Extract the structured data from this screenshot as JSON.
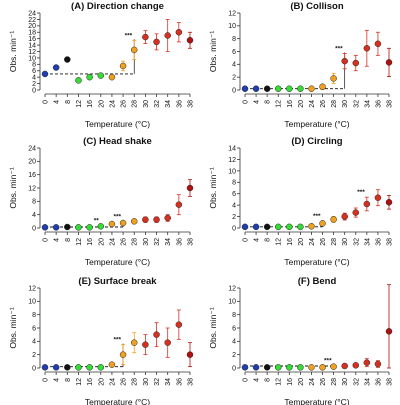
{
  "colors": {
    "0": "#1f3fb0",
    "4": "#1f3fb0",
    "8": "#111111",
    "12": "#33dd33",
    "16": "#33dd33",
    "20": "#33dd33",
    "24": "#f0a020",
    "26": "#f0a020",
    "28": "#f0a020",
    "30": "#d83020",
    "32": "#d83020",
    "34": "#d83020",
    "36": "#d83020",
    "38": "#b01010"
  },
  "chart_data": [
    {
      "type": "scatter",
      "title": "(A) Direction change",
      "xlabel": "Temperature (°C)",
      "ylabel": "Obs. min⁻¹",
      "ylim": [
        0,
        24
      ],
      "yticks": [
        0,
        2,
        4,
        6,
        8,
        10,
        12,
        14,
        16,
        18,
        20,
        22,
        24
      ],
      "xticks": [
        0,
        4,
        8,
        12,
        16,
        20,
        24,
        26,
        28,
        30,
        32,
        34,
        36,
        38
      ],
      "x": [
        0,
        4,
        8,
        12,
        16,
        20,
        24,
        26,
        28,
        30,
        32,
        34,
        36,
        38
      ],
      "y": [
        5,
        7,
        9.5,
        3,
        4,
        4.5,
        4,
        7.5,
        12.5,
        16.5,
        15,
        17,
        18,
        15.5
      ],
      "err": [
        0.4,
        0.6,
        0.6,
        0.3,
        0.4,
        0.4,
        0.5,
        1.5,
        3,
        2,
        2.5,
        5,
        3,
        2.5
      ],
      "baseline": 5,
      "sig_label": "***",
      "sig_x": 28
    },
    {
      "type": "scatter",
      "title": "(B) Collison",
      "xlabel": "Temperature (°C)",
      "ylabel": "Obs. min⁻¹",
      "ylim": [
        0,
        12
      ],
      "yticks": [
        0,
        2,
        4,
        6,
        8,
        10,
        12
      ],
      "xticks": [
        0,
        4,
        8,
        12,
        16,
        20,
        24,
        26,
        28,
        30,
        32,
        34,
        36,
        38
      ],
      "x": [
        0,
        4,
        8,
        12,
        16,
        20,
        24,
        26,
        28,
        30,
        32,
        34,
        36,
        38
      ],
      "y": [
        0.2,
        0.2,
        0.2,
        0.2,
        0.2,
        0.2,
        0.2,
        0.5,
        1.8,
        4.5,
        4.2,
        6.5,
        7.2,
        4.3
      ],
      "err": [
        0.1,
        0.1,
        0.1,
        0.1,
        0.1,
        0.1,
        0.2,
        0.4,
        0.8,
        1.2,
        1.2,
        2.8,
        1.8,
        2.2
      ],
      "baseline": 0.2,
      "sig_label": "***",
      "sig_x": 30
    },
    {
      "type": "scatter",
      "title": "(C) Head shake",
      "xlabel": "Temperature (°C)",
      "ylabel": "Obs. min⁻¹",
      "ylim": [
        0,
        24
      ],
      "yticks": [
        0,
        4,
        8,
        12,
        16,
        20,
        24
      ],
      "xticks": [
        0,
        4,
        8,
        12,
        16,
        20,
        24,
        26,
        28,
        30,
        32,
        34,
        36,
        38
      ],
      "x": [
        0,
        4,
        8,
        12,
        16,
        20,
        24,
        26,
        28,
        30,
        32,
        34,
        36,
        38
      ],
      "y": [
        0.2,
        0.2,
        0.3,
        0.2,
        0.2,
        0.5,
        1.2,
        1.5,
        2,
        2.5,
        2.5,
        3,
        7,
        12
      ],
      "err": [
        0.1,
        0.1,
        0.1,
        0.1,
        0.1,
        0.2,
        0.4,
        0.5,
        0.6,
        0.8,
        0.8,
        1,
        3,
        2.5
      ],
      "baseline": 0.3,
      "sig_label": "***",
      "sig_x": 26,
      "sig2_label": "**",
      "sig2_x": 20
    },
    {
      "type": "scatter",
      "title": "(D) Circling",
      "xlabel": "Temperature (°C)",
      "ylabel": "Obs. min⁻¹",
      "ylim": [
        0,
        14
      ],
      "yticks": [
        0,
        2,
        4,
        6,
        8,
        10,
        12,
        14
      ],
      "xticks": [
        0,
        4,
        8,
        12,
        16,
        20,
        24,
        26,
        28,
        30,
        32,
        34,
        36,
        38
      ],
      "x": [
        0,
        4,
        8,
        12,
        16,
        20,
        24,
        26,
        28,
        30,
        32,
        34,
        36,
        38
      ],
      "y": [
        0.2,
        0.2,
        0.2,
        0.2,
        0.2,
        0.2,
        0.3,
        0.8,
        1.5,
        2,
        2.7,
        4.2,
        5.3,
        4.5
      ],
      "err": [
        0.1,
        0.1,
        0.1,
        0.1,
        0.1,
        0.1,
        0.2,
        0.4,
        0.5,
        0.6,
        0.8,
        1.2,
        1.4,
        1.2
      ],
      "baseline": 0.2,
      "sig_label": "***",
      "sig_x": 26,
      "sig2_label": "***",
      "sig2_x": 34
    },
    {
      "type": "scatter",
      "title": "(E) Surface break",
      "xlabel": "Temperature (°C)",
      "ylabel": "Obs. min⁻¹",
      "ylim": [
        0,
        12
      ],
      "yticks": [
        0,
        2,
        4,
        6,
        8,
        10,
        12
      ],
      "xticks": [
        0,
        4,
        8,
        12,
        16,
        20,
        24,
        26,
        28,
        30,
        32,
        34,
        36,
        38
      ],
      "x": [
        0,
        4,
        8,
        12,
        16,
        20,
        24,
        26,
        28,
        30,
        32,
        34,
        36,
        38
      ],
      "y": [
        0.1,
        0.1,
        0.1,
        0.1,
        0.1,
        0.1,
        0.5,
        2,
        3.8,
        3.5,
        5,
        3.8,
        6.5,
        2
      ],
      "err": [
        0.1,
        0.1,
        0.1,
        0.1,
        0.1,
        0.1,
        0.3,
        1.5,
        1.5,
        1.5,
        1.8,
        2.2,
        2.2,
        1.8
      ],
      "baseline": 0.2,
      "sig_label": "***",
      "sig_x": 26
    },
    {
      "type": "scatter",
      "title": "(F) Bend",
      "xlabel": "Temperature (°C)",
      "ylabel": "Obs. min⁻¹",
      "ylim": [
        0,
        12
      ],
      "yticks": [
        0,
        2,
        4,
        6,
        8,
        10,
        12
      ],
      "xticks": [
        0,
        4,
        8,
        12,
        16,
        20,
        24,
        26,
        28,
        30,
        32,
        34,
        36,
        38
      ],
      "x": [
        0,
        4,
        8,
        12,
        16,
        20,
        24,
        26,
        28,
        30,
        32,
        34,
        36,
        38
      ],
      "y": [
        0.1,
        0.1,
        0.1,
        0.1,
        0.1,
        0.1,
        0.1,
        0.1,
        0.2,
        0.3,
        0.4,
        0.8,
        0.6,
        5.5
      ],
      "err": [
        0.1,
        0.1,
        0.1,
        0.1,
        0.1,
        0.1,
        0.1,
        0.1,
        0.2,
        0.3,
        0.3,
        0.6,
        0.5,
        7
      ],
      "baseline": 0.3,
      "sig_label": "***",
      "sig_x": 28
    }
  ]
}
